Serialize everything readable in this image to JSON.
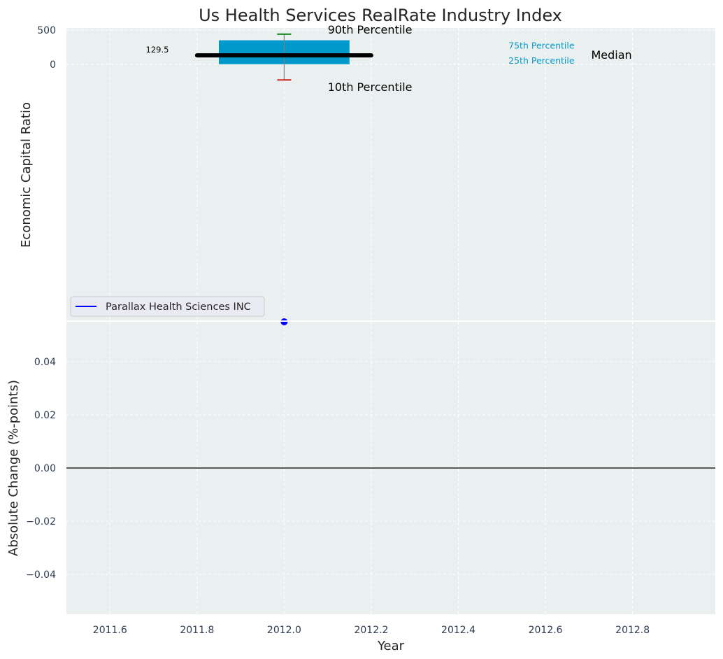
{
  "chart_data": {
    "title": "Us Health Services RealRate Industry Index",
    "x_axis": {
      "label": "Year",
      "range": [
        2011.5,
        2012.99
      ],
      "ticks": [
        2011.6,
        2011.8,
        2012.0,
        2012.2,
        2012.4,
        2012.6,
        2012.8
      ],
      "tick_labels": [
        "2011.6",
        "2011.8",
        "2012.0",
        "2012.2",
        "2012.4",
        "2012.6",
        "2012.8"
      ]
    },
    "top_panel": {
      "type": "box",
      "ylabel": "Economic Capital Ratio",
      "ylim": [
        -3750,
        530
      ],
      "y_ticks": [
        0,
        500
      ],
      "y_tick_labels": [
        "0",
        "500"
      ],
      "grid": true,
      "box": {
        "x": 2012.0,
        "box_x_range": [
          2011.85,
          2012.15
        ],
        "median_line_x_range": [
          2011.8,
          2012.2
        ],
        "p10": -230,
        "p25": 0,
        "median": 129.5,
        "p75": 350,
        "p90": 440,
        "box_color": "#0099cc",
        "median_color": "#000000",
        "p90_cap_color": "#008000",
        "p10_cap_color": "#cc0000",
        "whisker_color": "#7f7f7f"
      },
      "value_label": "129.5",
      "annotations": [
        {
          "text": "90th Percentile",
          "x": 2012.1,
          "y": 500,
          "style": "large"
        },
        {
          "text": "10th Percentile",
          "x": 2012.1,
          "y": -340,
          "style": "large"
        },
        {
          "text": "75th Percentile",
          "x": 2012.515,
          "y": 280,
          "style": "small"
        },
        {
          "text": "25th Percentile",
          "x": 2012.515,
          "y": 60,
          "style": "small"
        },
        {
          "text": "Median",
          "x": 2012.705,
          "y": 130,
          "style": "large"
        }
      ]
    },
    "bottom_panel": {
      "type": "line",
      "ylabel": "Absolute Change (%-points)",
      "ylim": [
        -0.055,
        0.055
      ],
      "y_ticks": [
        -0.04,
        -0.02,
        0.0,
        0.02,
        0.04
      ],
      "y_tick_labels": [
        "−0.04",
        "−0.02",
        "0.00",
        "0.02",
        "0.04"
      ],
      "grid": true,
      "zero_line": true,
      "series": [
        {
          "name": "Parallax Health Sciences INC",
          "color": "#0000ff",
          "x": [
            2012.0
          ],
          "y": [
            0.055
          ]
        }
      ],
      "legend_location": "upper-left"
    },
    "colors": {
      "plot_background": "#eaeff0",
      "grid": "#ffffff",
      "panel_divider": "#ffffff"
    }
  }
}
